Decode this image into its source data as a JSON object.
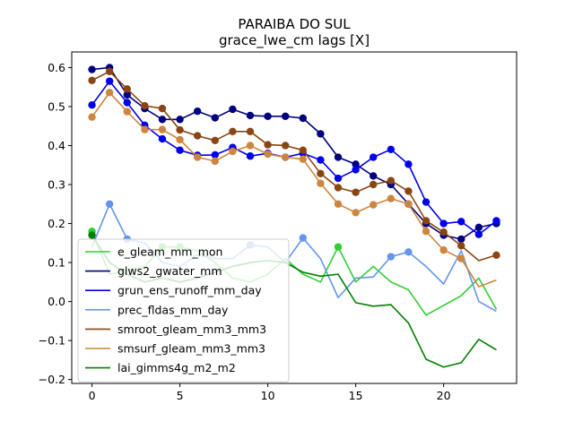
{
  "chart_data": {
    "type": "line",
    "title": "PARAIBA DO SUL",
    "subtitle": "grace_lwe_cm lags [X]",
    "xlabel": "",
    "ylabel": "",
    "xlim": [
      -1.15,
      24.15
    ],
    "ylim": [
      -0.21,
      0.64
    ],
    "xticks": [
      0,
      5,
      10,
      15,
      20
    ],
    "yticks": [
      -0.2,
      -0.1,
      0.0,
      0.1,
      0.2,
      0.3,
      0.4,
      0.5,
      0.6
    ],
    "ytick_labels": [
      "−0.2",
      "−0.1",
      "0.0",
      "0.1",
      "0.2",
      "0.3",
      "0.4",
      "0.5",
      "0.6"
    ],
    "legend_position": "lower-left",
    "grid": false,
    "x": [
      0,
      1,
      2,
      3,
      4,
      5,
      6,
      7,
      8,
      9,
      10,
      11,
      12,
      13,
      14,
      15,
      16,
      17,
      18,
      19,
      20,
      21,
      22,
      23
    ],
    "series": [
      {
        "name": "e_gleam_mm_mon",
        "color": "#32cd32",
        "values": [
          0.18,
          0.07,
          0.08,
          0.09,
          0.14,
          0.14,
          0.13,
          0.1,
          0.06,
          0.05,
          0.07,
          0.11,
          0.07,
          0.05,
          0.14,
          0.05,
          0.09,
          0.05,
          0.03,
          -0.035,
          -0.01,
          0.015,
          0.06,
          -0.02
        ],
        "markers": [
          0,
          4,
          5,
          14
        ]
      },
      {
        "name": "glws2_gwater_mm",
        "color": "#00007f",
        "values": [
          0.595,
          0.6,
          0.53,
          0.495,
          0.467,
          0.467,
          0.488,
          0.471,
          0.493,
          0.477,
          0.475,
          0.475,
          0.47,
          0.43,
          0.37,
          0.352,
          0.322,
          0.3,
          0.25,
          0.2,
          0.17,
          0.16,
          0.19,
          0.2
        ],
        "markers": [
          0,
          1,
          2,
          3,
          4,
          5,
          6,
          7,
          8,
          9,
          10,
          11,
          12,
          13,
          14,
          15,
          16,
          17,
          18,
          19,
          20,
          21,
          22,
          23
        ]
      },
      {
        "name": "grun_ens_runoff_mm_day",
        "color": "#0000ee",
        "values": [
          0.504,
          0.565,
          0.51,
          0.452,
          0.417,
          0.388,
          0.375,
          0.376,
          0.395,
          0.373,
          0.38,
          0.37,
          0.38,
          0.363,
          0.316,
          0.338,
          0.37,
          0.39,
          0.352,
          0.255,
          0.2,
          0.205,
          0.172,
          0.207
        ],
        "markers": [
          0,
          1,
          2,
          3,
          4,
          5,
          6,
          7,
          8,
          9,
          10,
          11,
          12,
          13,
          14,
          15,
          16,
          17,
          18,
          19,
          20,
          21,
          22,
          23
        ]
      },
      {
        "name": "prec_fldas_mm_day",
        "color": "#6495ed",
        "values": [
          0.14,
          0.25,
          0.16,
          0.15,
          0.1,
          0.09,
          0.12,
          0.11,
          0.11,
          0.145,
          0.14,
          0.1,
          0.163,
          0.11,
          0.01,
          0.06,
          0.063,
          0.115,
          0.127,
          0.09,
          0.045,
          0.13,
          0.0,
          -0.025
        ],
        "markers": [
          1,
          2,
          9,
          12,
          17,
          18
        ]
      },
      {
        "name": "smroot_gleam_mm3_mm3",
        "color": "#8b4513",
        "values": [
          0.567,
          0.59,
          0.545,
          0.502,
          0.495,
          0.44,
          0.425,
          0.413,
          0.436,
          0.436,
          0.402,
          0.4,
          0.388,
          0.328,
          0.292,
          0.28,
          0.3,
          0.31,
          0.283,
          0.207,
          0.178,
          0.143,
          0.105,
          0.119
        ],
        "markers": [
          0,
          1,
          2,
          3,
          4,
          5,
          6,
          7,
          8,
          9,
          10,
          11,
          12,
          13,
          14,
          15,
          16,
          17,
          18,
          19,
          20,
          21,
          23
        ]
      },
      {
        "name": "smsurf_gleam_mm3_mm3",
        "color": "#cd853f",
        "values": [
          0.473,
          0.536,
          0.487,
          0.441,
          0.441,
          0.415,
          0.37,
          0.36,
          0.385,
          0.4,
          0.378,
          0.37,
          0.365,
          0.303,
          0.25,
          0.228,
          0.248,
          0.264,
          0.25,
          0.18,
          0.132,
          0.11,
          0.038,
          0.055
        ],
        "markers": [
          0,
          1,
          2,
          3,
          4,
          5,
          6,
          7,
          8,
          9,
          10,
          11,
          12,
          13,
          14,
          15,
          16,
          17,
          18,
          19,
          20,
          21
        ]
      },
      {
        "name": "lai_gimms4g_m2_m2",
        "color": "#008000",
        "values": [
          0.17,
          0.1,
          0.07,
          0.05,
          0.06,
          0.05,
          0.06,
          0.075,
          0.09,
          0.1,
          0.105,
          0.1,
          0.075,
          0.065,
          0.07,
          -0.003,
          -0.012,
          -0.008,
          -0.055,
          -0.148,
          -0.168,
          -0.157,
          -0.097,
          -0.124
        ],
        "markers": [
          0
        ]
      }
    ]
  }
}
